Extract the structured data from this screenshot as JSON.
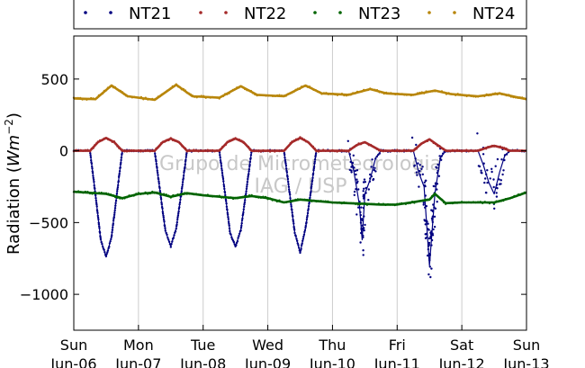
{
  "chart_data": {
    "type": "scatter",
    "ylabel": "Radiation (",
    "ylabel_unit": "Wm",
    "ylabel_exp": "−2",
    "ylabel_close": ")",
    "xlim": [
      "2014-06-06T00:00",
      "2014-06-13T00:00"
    ],
    "ylim": [
      -1250,
      800
    ],
    "yticks": [
      500,
      0,
      -500,
      -1000
    ],
    "ytick_labels": [
      "500",
      "0",
      "−500",
      "−1000"
    ],
    "xtick_dates": [
      "2014-06-06",
      "2014-06-07",
      "2014-06-08",
      "2014-06-09",
      "2014-06-10",
      "2014-06-11",
      "2014-06-12",
      "2014-06-13"
    ],
    "xtick_labels": [
      [
        "Sun",
        "Jun-06"
      ],
      [
        "Mon",
        "Jun-07"
      ],
      [
        "Tue",
        "Jun-08"
      ],
      [
        "Wed",
        "Jun-09"
      ],
      [
        "Thu",
        "Jun-10"
      ],
      [
        "Fri",
        "Jun-11"
      ],
      [
        "Sat",
        "Jun-12"
      ],
      [
        "Sun",
        "Jun-13"
      ]
    ],
    "grid": "vertical",
    "legend": "top",
    "watermark": [
      "Grupo de Micrometeorologia",
      "IAG / USP"
    ],
    "series": [
      {
        "name": "NT21",
        "color": "#000080",
        "points": [
          [
            "2014-06-06T00:00",
            0
          ],
          [
            "2014-06-06T06:00",
            0
          ],
          [
            "2014-06-06T08:00",
            -300
          ],
          [
            "2014-06-06T10:00",
            -620
          ],
          [
            "2014-06-06T12:00",
            -740
          ],
          [
            "2014-06-06T14:00",
            -600
          ],
          [
            "2014-06-06T16:00",
            -300
          ],
          [
            "2014-06-06T18:00",
            0
          ],
          [
            "2014-06-07T06:00",
            0
          ],
          [
            "2014-06-07T08:00",
            -280
          ],
          [
            "2014-06-07T10:00",
            -560
          ],
          [
            "2014-06-07T12:00",
            -665
          ],
          [
            "2014-06-07T14:00",
            -540
          ],
          [
            "2014-06-07T16:00",
            -280
          ],
          [
            "2014-06-07T18:00",
            0
          ],
          [
            "2014-06-08T06:00",
            0
          ],
          [
            "2014-06-08T08:00",
            -280
          ],
          [
            "2014-06-08T10:00",
            -570
          ],
          [
            "2014-06-08T12:00",
            -670
          ],
          [
            "2014-06-08T14:00",
            -550
          ],
          [
            "2014-06-08T16:00",
            -280
          ],
          [
            "2014-06-08T18:00",
            0
          ],
          [
            "2014-06-09T06:00",
            0
          ],
          [
            "2014-06-09T08:00",
            -280
          ],
          [
            "2014-06-09T10:00",
            -570
          ],
          [
            "2014-06-09T12:00",
            -710
          ],
          [
            "2014-06-09T14:00",
            -540
          ],
          [
            "2014-06-09T16:00",
            -280
          ],
          [
            "2014-06-09T18:00",
            0
          ],
          [
            "2014-06-10T06:00",
            0
          ],
          [
            "2014-06-10T08:00",
            -150
          ],
          [
            "2014-06-10T10:00",
            -380
          ],
          [
            "2014-06-10T11:00",
            -620
          ],
          [
            "2014-06-10T12:00",
            -300
          ],
          [
            "2014-06-10T14:00",
            -200
          ],
          [
            "2014-06-10T16:00",
            -50
          ],
          [
            "2014-06-10T18:00",
            0
          ],
          [
            "2014-06-11T06:00",
            0
          ],
          [
            "2014-06-11T08:00",
            -150
          ],
          [
            "2014-06-11T10:00",
            -250
          ],
          [
            "2014-06-11T12:00",
            -800
          ],
          [
            "2014-06-11T14:00",
            -300
          ],
          [
            "2014-06-11T16:00",
            -50
          ],
          [
            "2014-06-11T18:00",
            0
          ],
          [
            "2014-06-12T06:00",
            0
          ],
          [
            "2014-06-12T08:00",
            -100
          ],
          [
            "2014-06-12T10:00",
            -220
          ],
          [
            "2014-06-12T12:00",
            -300
          ],
          [
            "2014-06-12T14:00",
            -150
          ],
          [
            "2014-06-12T16:00",
            -30
          ],
          [
            "2014-06-12T18:00",
            0
          ],
          [
            "2014-06-13T00:00",
            0
          ]
        ]
      },
      {
        "name": "NT22",
        "color": "#a52a2a",
        "points": [
          [
            "2014-06-06T00:00",
            0
          ],
          [
            "2014-06-06T06:00",
            0
          ],
          [
            "2014-06-06T09:00",
            60
          ],
          [
            "2014-06-06T12:00",
            90
          ],
          [
            "2014-06-06T15:00",
            60
          ],
          [
            "2014-06-06T18:00",
            0
          ],
          [
            "2014-06-07T06:00",
            0
          ],
          [
            "2014-06-07T09:00",
            60
          ],
          [
            "2014-06-07T12:00",
            85
          ],
          [
            "2014-06-07T15:00",
            60
          ],
          [
            "2014-06-07T18:00",
            0
          ],
          [
            "2014-06-08T06:00",
            0
          ],
          [
            "2014-06-08T09:00",
            60
          ],
          [
            "2014-06-08T12:00",
            85
          ],
          [
            "2014-06-08T15:00",
            60
          ],
          [
            "2014-06-08T18:00",
            0
          ],
          [
            "2014-06-09T06:00",
            0
          ],
          [
            "2014-06-09T09:00",
            60
          ],
          [
            "2014-06-09T12:00",
            90
          ],
          [
            "2014-06-09T15:00",
            60
          ],
          [
            "2014-06-09T18:00",
            0
          ],
          [
            "2014-06-10T06:00",
            0
          ],
          [
            "2014-06-10T09:00",
            40
          ],
          [
            "2014-06-10T12:00",
            60
          ],
          [
            "2014-06-10T15:00",
            30
          ],
          [
            "2014-06-10T18:00",
            0
          ],
          [
            "2014-06-11T06:00",
            0
          ],
          [
            "2014-06-11T09:00",
            50
          ],
          [
            "2014-06-11T12:00",
            80
          ],
          [
            "2014-06-11T15:00",
            40
          ],
          [
            "2014-06-11T18:00",
            0
          ],
          [
            "2014-06-12T06:00",
            0
          ],
          [
            "2014-06-12T09:00",
            20
          ],
          [
            "2014-06-12T12:00",
            35
          ],
          [
            "2014-06-12T15:00",
            20
          ],
          [
            "2014-06-12T18:00",
            0
          ],
          [
            "2014-06-13T00:00",
            0
          ]
        ]
      },
      {
        "name": "NT23",
        "color": "#006400",
        "points": [
          [
            "2014-06-06T00:00",
            -285
          ],
          [
            "2014-06-06T12:00",
            -300
          ],
          [
            "2014-06-06T18:00",
            -330
          ],
          [
            "2014-06-07T00:00",
            -300
          ],
          [
            "2014-06-07T06:00",
            -290
          ],
          [
            "2014-06-07T12:00",
            -320
          ],
          [
            "2014-06-07T18:00",
            -295
          ],
          [
            "2014-06-08T00:00",
            -310
          ],
          [
            "2014-06-08T12:00",
            -330
          ],
          [
            "2014-06-08T18:00",
            -315
          ],
          [
            "2014-06-09T00:00",
            -330
          ],
          [
            "2014-06-09T06:00",
            -360
          ],
          [
            "2014-06-09T12:00",
            -340
          ],
          [
            "2014-06-09T18:00",
            -350
          ],
          [
            "2014-06-10T00:00",
            -360
          ],
          [
            "2014-06-10T12:00",
            -370
          ],
          [
            "2014-06-10T18:00",
            -375
          ],
          [
            "2014-06-11T00:00",
            -375
          ],
          [
            "2014-06-11T12:00",
            -340
          ],
          [
            "2014-06-11T14:00",
            -300
          ],
          [
            "2014-06-11T18:00",
            -365
          ],
          [
            "2014-06-12T00:00",
            -360
          ],
          [
            "2014-06-12T12:00",
            -360
          ],
          [
            "2014-06-12T18:00",
            -330
          ],
          [
            "2014-06-13T00:00",
            -290
          ]
        ]
      },
      {
        "name": "NT24",
        "color": "#b8860b",
        "points": [
          [
            "2014-06-06T00:00",
            365
          ],
          [
            "2014-06-06T08:00",
            360
          ],
          [
            "2014-06-06T14:00",
            455
          ],
          [
            "2014-06-06T20:00",
            380
          ],
          [
            "2014-06-07T06:00",
            355
          ],
          [
            "2014-06-07T14:00",
            460
          ],
          [
            "2014-06-07T20:00",
            380
          ],
          [
            "2014-06-08T06:00",
            370
          ],
          [
            "2014-06-08T14:00",
            450
          ],
          [
            "2014-06-08T20:00",
            390
          ],
          [
            "2014-06-09T06:00",
            380
          ],
          [
            "2014-06-09T14:00",
            455
          ],
          [
            "2014-06-09T20:00",
            400
          ],
          [
            "2014-06-10T06:00",
            390
          ],
          [
            "2014-06-10T14:00",
            430
          ],
          [
            "2014-06-10T20:00",
            400
          ],
          [
            "2014-06-11T06:00",
            390
          ],
          [
            "2014-06-11T14:00",
            420
          ],
          [
            "2014-06-11T20:00",
            395
          ],
          [
            "2014-06-12T06:00",
            380
          ],
          [
            "2014-06-12T14:00",
            400
          ],
          [
            "2014-06-12T20:00",
            375
          ],
          [
            "2014-06-13T00:00",
            360
          ]
        ]
      }
    ]
  }
}
